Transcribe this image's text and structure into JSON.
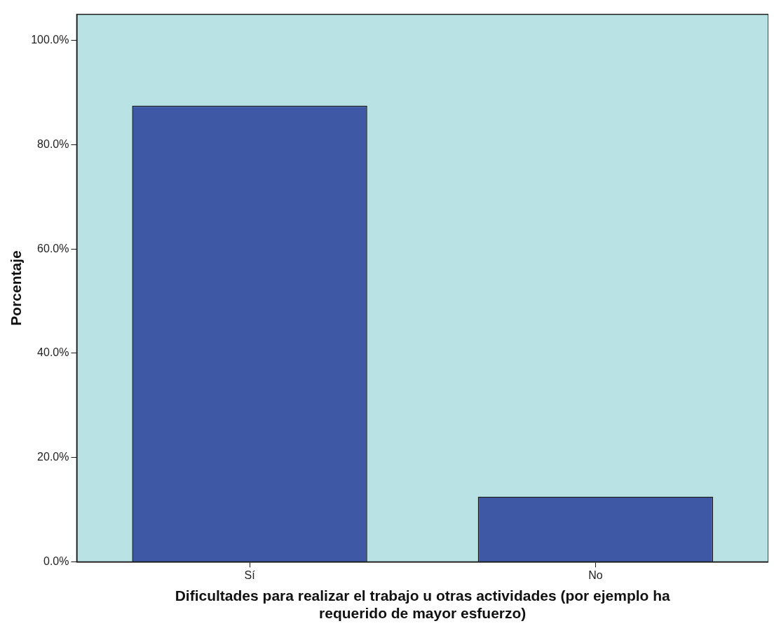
{
  "chart_data": {
    "type": "bar",
    "xlabel": "Dificultades para realizar el trabajo u otras actividades (por ejemplo ha requerido de mayor esfuerzo)",
    "ylabel": "Porcentaje",
    "categories": [
      "Sí",
      "No"
    ],
    "values": [
      87.5,
      12.5
    ],
    "color": "#3f58a6",
    "ylim": [
      0,
      105
    ],
    "yticks": [
      {
        "value": 0,
        "label": "0.0%"
      },
      {
        "value": 20,
        "label": "20.0%"
      },
      {
        "value": 40,
        "label": "40.0%"
      },
      {
        "value": 60,
        "label": "60.0%"
      },
      {
        "value": 80,
        "label": "80.0%"
      },
      {
        "value": 100,
        "label": "100.0%"
      }
    ],
    "grid": false,
    "legend": false
  }
}
